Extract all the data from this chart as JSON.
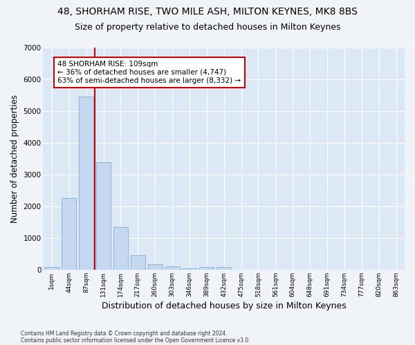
{
  "title1": "48, SHORHAM RISE, TWO MILE ASH, MILTON KEYNES, MK8 8BS",
  "title2": "Size of property relative to detached houses in Milton Keynes",
  "xlabel": "Distribution of detached houses by size in Milton Keynes",
  "ylabel": "Number of detached properties",
  "footer1": "Contains HM Land Registry data © Crown copyright and database right 2024.",
  "footer2": "Contains public sector information licensed under the Open Government Licence v3.0.",
  "annotation_title": "48 SHORHAM RISE: 109sqm",
  "annotation_line1": "← 36% of detached houses are smaller (4,747)",
  "annotation_line2": "63% of semi-detached houses are larger (8,332) →",
  "bar_labels": [
    "1sqm",
    "44sqm",
    "87sqm",
    "131sqm",
    "174sqm",
    "217sqm",
    "260sqm",
    "303sqm",
    "346sqm",
    "389sqm",
    "432sqm",
    "475sqm",
    "518sqm",
    "561sqm",
    "604sqm",
    "648sqm",
    "691sqm",
    "734sqm",
    "777sqm",
    "820sqm",
    "863sqm"
  ],
  "bar_values": [
    75,
    2250,
    5450,
    3400,
    1350,
    450,
    175,
    100,
    50,
    75,
    75,
    0,
    0,
    0,
    0,
    0,
    0,
    0,
    0,
    0,
    0
  ],
  "bar_color": "#c5d8ef",
  "bar_edge_color": "#7aafd4",
  "vline_color": "#cc0000",
  "vline_x_idx": 2,
  "ylim": [
    0,
    7000
  ],
  "yticks": [
    0,
    1000,
    2000,
    3000,
    4000,
    5000,
    6000,
    7000
  ],
  "fig_bg_color": "#f0f4f8",
  "plot_bg_color": "#dce8f5",
  "annotation_box_edge": "#cc0000",
  "title1_fontsize": 10,
  "title2_fontsize": 9,
  "xlabel_fontsize": 9,
  "ylabel_fontsize": 8.5
}
